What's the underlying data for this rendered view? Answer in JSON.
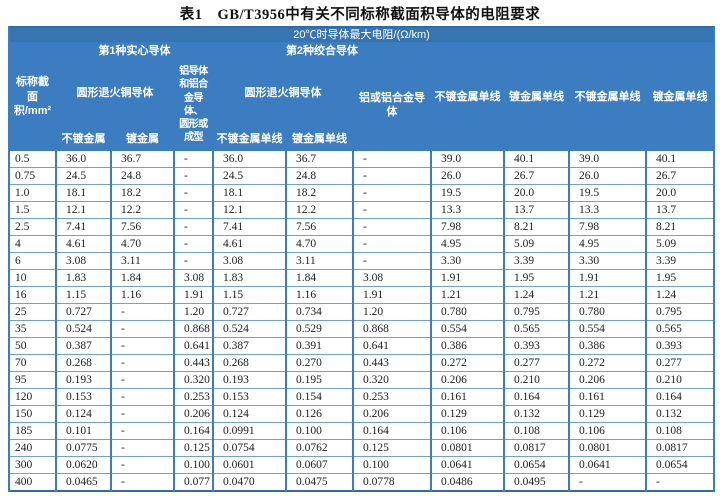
{
  "page_title": "表1　GB/T3956中有关不同标称截面积导体的电阻要求",
  "colors": {
    "header_bg": "#3c7cc0",
    "header_top_bg": "#3674b2",
    "grid_blue": "#3c7cc0",
    "grid_light_blue": "#6fa0d6",
    "header_text": "#ffffff",
    "data_text": "#1d1d1d"
  },
  "header": {
    "title_row": "20℃时导体最大电阻/(Ω/km)",
    "nominal_area": "标称截\n面积/mm²",
    "class1_group": "第1种实心导体",
    "class2_group": "第2种绞合导体",
    "class1_copper": "圆形退火铜导体",
    "class1_aluminium": "铝导体\n和铝合\n金导体、\n圆形或\n成型",
    "class2_copper": "圆形退火铜导体",
    "class2_aluminium": "铝或铝合金导体",
    "class1_unplated": "不镀金属",
    "class1_plated": "镀金属",
    "class2_unplated": "不镀金属单线",
    "class2_plated": "镀金属单线",
    "flex1_unplated": "不镀金属单线",
    "flex1_plated": "镀金属单线",
    "flex2_unplated": "不镀金属单线",
    "flex2_plated": "镀金属单线"
  },
  "rows": [
    [
      "0.5",
      "36.0",
      "36.7",
      "-",
      "36.0",
      "36.7",
      "-",
      "39.0",
      "40.1",
      "39.0",
      "40.1"
    ],
    [
      "0.75",
      "24.5",
      "24.8",
      "-",
      "24.5",
      "24.8",
      "-",
      "26.0",
      "26.7",
      "26.0",
      "26.7"
    ],
    [
      "1.0",
      "18.1",
      "18.2",
      "-",
      "18.1",
      "18.2",
      "-",
      "19.5",
      "20.0",
      "19.5",
      "20.0"
    ],
    [
      "1.5",
      "12.1",
      "12.2",
      "-",
      "12.1",
      "12.2",
      "-",
      "13.3",
      "13.7",
      "13.3",
      "13.7"
    ],
    [
      "2.5",
      "7.41",
      "7.56",
      "-",
      "7.41",
      "7.56",
      "-",
      "7.98",
      "8.21",
      "7.98",
      "8.21"
    ],
    [
      "4",
      "4.61",
      "4.70",
      "-",
      "4.61",
      "4.70",
      "-",
      "4.95",
      "5.09",
      "4.95",
      "5.09"
    ],
    [
      "6",
      "3.08",
      "3.11",
      "-",
      "3.08",
      "3.11",
      "-",
      "3.30",
      "3.39",
      "3.30",
      "3.39"
    ],
    [
      "10",
      "1.83",
      "1.84",
      "3.08",
      "1.83",
      "1.84",
      "3.08",
      "1.91",
      "1.95",
      "1.91",
      "1.95"
    ],
    [
      "16",
      "1.15",
      "1.16",
      "1.91",
      "1.15",
      "1.16",
      "1.91",
      "1.21",
      "1.24",
      "1.21",
      "1.24"
    ],
    [
      "25",
      "0.727",
      "-",
      "1.20",
      "0.727",
      "0.734",
      "1.20",
      "0.780",
      "0.795",
      "0.780",
      "0.795"
    ],
    [
      "35",
      "0.524",
      "-",
      "0.868",
      "0.524",
      "0.529",
      "0.868",
      "0.554",
      "0.565",
      "0.554",
      "0.565"
    ],
    [
      "50",
      "0.387",
      "-",
      "0.641",
      "0.387",
      "0.391",
      "0.641",
      "0.386",
      "0.393",
      "0.386",
      "0.393"
    ],
    [
      "70",
      "0.268",
      "-",
      "0.443",
      "0.268",
      "0.270",
      "0.443",
      "0.272",
      "0.277",
      "0.272",
      "0.277"
    ],
    [
      "95",
      "0.193",
      "-",
      "0.320",
      "0.193",
      "0.195",
      "0.320",
      "0.206",
      "0.210",
      "0.206",
      "0.210"
    ],
    [
      "120",
      "0.153",
      "-",
      "0.253",
      "0.153",
      "0.154",
      "0.253",
      "0.161",
      "0.164",
      "0.161",
      "0.164"
    ],
    [
      "150",
      "0.124",
      "-",
      "0.206",
      "0.124",
      "0.126",
      "0.206",
      "0.129",
      "0.132",
      "0.129",
      "0.132"
    ],
    [
      "185",
      "0.101",
      "-",
      "0.164",
      "0.0991",
      "0.100",
      "0.164",
      "0.106",
      "0.108",
      "0.106",
      "0.108"
    ],
    [
      "240",
      "0.0775",
      "-",
      "0.125",
      "0.0754",
      "0.0762",
      "0.125",
      "0.0801",
      "0.0817",
      "0.0801",
      "0.0817"
    ],
    [
      "300",
      "0.0620",
      "-",
      "0.100",
      "0.0601",
      "0.0607",
      "0.100",
      "0.0641",
      "0.0654",
      "0.0641",
      "0.0654"
    ],
    [
      "400",
      "0.0465",
      "-",
      "0.077",
      "0.0470",
      "0.0475",
      "0.0778",
      "0.0486",
      "0.0495",
      "-",
      "-"
    ]
  ]
}
